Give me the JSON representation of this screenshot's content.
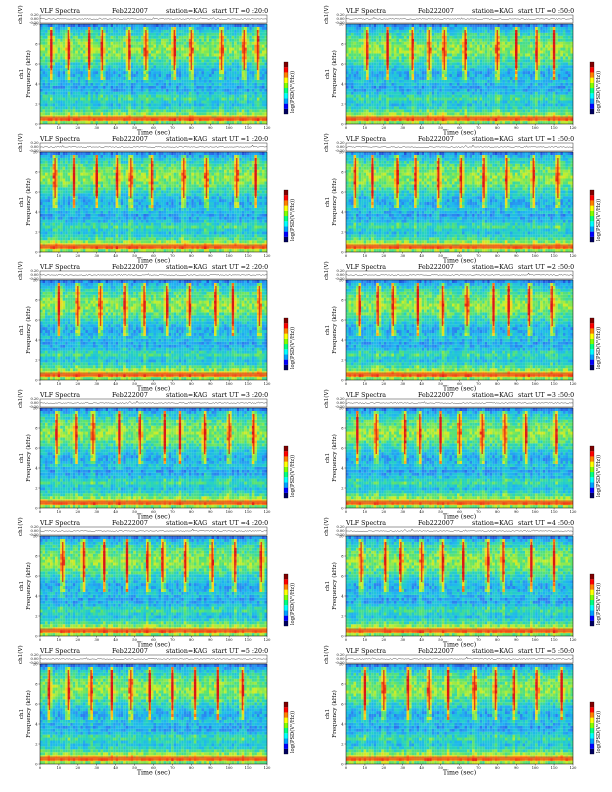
{
  "chart_data": {
    "type": "heatmap",
    "panel_header": {
      "title": "VLF Spectra",
      "date": "Feb222007",
      "station": "station=KAG",
      "start_prefix": "start UT ="
    },
    "start_times": [
      "0 :20:0",
      "0 :50:0",
      "1 :20:0",
      "1 :50:0",
      "2 :20:0",
      "2 :50:0",
      "3 :20:0",
      "3 :50:0",
      "4 :20:0",
      "4 :50:0",
      "5 :20:0",
      "5 :50:0"
    ],
    "amplitude_axis": {
      "label": "ch1(V)",
      "ticks": [
        "0.20",
        "0.00",
        "-0.20"
      ],
      "range": [
        -0.2,
        0.2
      ]
    },
    "frequency_axis": {
      "label_line1": "ch1",
      "label_line2": "Frequency (kHz)",
      "ticks": [
        0,
        2,
        4,
        6,
        8,
        10
      ],
      "range": [
        0,
        10
      ]
    },
    "time_axis": {
      "label": "Time (sec)",
      "ticks": [
        0,
        10,
        20,
        30,
        40,
        50,
        60,
        70,
        80,
        90,
        100,
        110,
        120
      ],
      "range": [
        0,
        120
      ]
    },
    "colorbar": {
      "label": "log(PSD(V²/Hz))",
      "colors": [
        "#000060",
        "#0000ff",
        "#00a0ff",
        "#00ffff",
        "#00ff80",
        "#80ff00",
        "#ffff00",
        "#ff8000",
        "#ff0000",
        "#800000"
      ]
    },
    "colorscale": [
      "#1e3cd2",
      "#2d7df0",
      "#1fb7f0",
      "#27d3c0",
      "#5fe46a",
      "#c6ee2c",
      "#ffd21e",
      "#ff7a14",
      "#e11818"
    ],
    "spectrogram_levels": [
      {
        "freq": 0.0,
        "level": 0.45
      },
      {
        "freq": 0.3,
        "level": 0.62
      },
      {
        "freq": 0.5,
        "level": 0.86
      },
      {
        "freq": 0.7,
        "level": 0.68
      },
      {
        "freq": 1.0,
        "level": 0.55
      },
      {
        "freq": 1.5,
        "level": 0.38
      },
      {
        "freq": 2.0,
        "level": 0.28
      },
      {
        "freq": 2.6,
        "level": 0.44
      },
      {
        "freq": 3.0,
        "level": 0.3
      },
      {
        "freq": 3.6,
        "level": 0.2
      },
      {
        "freq": 4.2,
        "level": 0.3
      },
      {
        "freq": 5.0,
        "level": 0.22
      },
      {
        "freq": 5.6,
        "level": 0.3
      },
      {
        "freq": 6.2,
        "level": 0.4
      },
      {
        "freq": 6.8,
        "level": 0.5
      },
      {
        "freq": 7.4,
        "level": 0.56
      },
      {
        "freq": 8.0,
        "level": 0.52
      },
      {
        "freq": 8.6,
        "level": 0.46
      },
      {
        "freq": 9.2,
        "level": 0.34
      },
      {
        "freq": 9.6,
        "level": 0.24
      },
      {
        "freq": 10.0,
        "level": 0.1
      }
    ],
    "bursts_sec": [
      [
        6,
        15,
        26,
        33,
        47,
        56,
        71,
        80,
        96,
        108,
        115
      ],
      [
        11,
        22,
        35,
        44,
        52,
        63,
        80,
        90,
        101,
        110
      ],
      [
        8,
        18,
        30,
        41,
        48,
        59,
        76,
        88,
        104,
        114
      ],
      [
        5,
        14,
        27,
        37,
        49,
        61,
        73,
        85,
        99,
        112
      ],
      [
        10,
        20,
        32,
        45,
        55,
        67,
        79,
        93,
        102,
        116
      ],
      [
        7,
        17,
        25,
        38,
        51,
        64,
        78,
        86,
        97,
        109
      ],
      [
        9,
        19,
        28,
        42,
        53,
        66,
        74,
        87,
        100,
        113
      ],
      [
        6,
        16,
        31,
        39,
        50,
        60,
        72,
        84,
        95,
        111
      ],
      [
        12,
        23,
        34,
        46,
        57,
        65,
        77,
        91,
        103,
        117
      ],
      [
        8,
        21,
        29,
        40,
        51,
        62,
        75,
        83,
        98,
        110
      ],
      [
        5,
        15,
        27,
        38,
        48,
        58,
        70,
        82,
        94,
        107
      ],
      [
        10,
        20,
        33,
        44,
        54,
        68,
        79,
        89,
        101,
        114
      ]
    ]
  }
}
